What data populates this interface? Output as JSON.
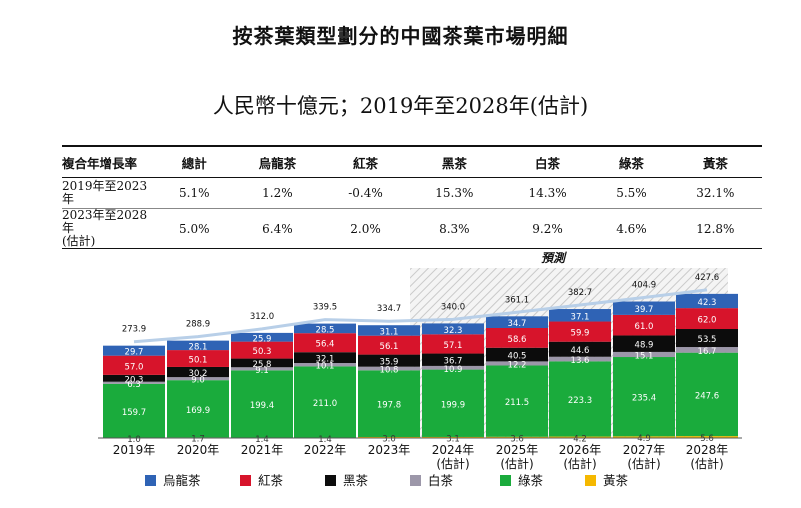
{
  "title": "按茶葉類型劃分的中國茶葉市場明細",
  "subtitle": "人民幣十億元；2019年至2028年(估計)",
  "cagr_table": {
    "headers": [
      "複合年增長率",
      "總計",
      "烏龍茶",
      "紅茶",
      "黑茶",
      "白茶",
      "綠茶",
      "黃茶"
    ],
    "rows": [
      {
        "label": "2019年至2023年",
        "values": [
          "5.1%",
          "1.2%",
          "-0.4%",
          "15.3%",
          "14.3%",
          "5.5%",
          "32.1%"
        ]
      },
      {
        "label": "2023年至2028年\n(估計)",
        "values": [
          "5.0%",
          "6.4%",
          "2.0%",
          "8.3%",
          "9.2%",
          "4.6%",
          "12.8%"
        ]
      }
    ]
  },
  "chart_data": {
    "type": "bar",
    "stacked": true,
    "forecast_label": "預測",
    "categories": [
      "2019年",
      "2020年",
      "2021年",
      "2022年",
      "2023年",
      "2024年\n(估計)",
      "2025年\n(估計)",
      "2026年\n(估計)",
      "2027年\n(估計)",
      "2028年\n(估計)"
    ],
    "totals": [
      273.9,
      288.9,
      312.0,
      339.5,
      334.7,
      340.0,
      361.1,
      382.7,
      404.9,
      427.6
    ],
    "series": [
      {
        "name": "黃茶",
        "color": "#f5b800",
        "values": [
          1.0,
          1.7,
          1.4,
          1.4,
          3.0,
          3.1,
          3.6,
          4.2,
          4.9,
          5.6
        ]
      },
      {
        "name": "綠茶",
        "color": "#1aab3c",
        "values": [
          159.7,
          169.9,
          199.4,
          211.0,
          197.8,
          199.9,
          211.5,
          223.3,
          235.4,
          247.6
        ]
      },
      {
        "name": "白茶",
        "color": "#9c97a9",
        "values": [
          6.3,
          9.0,
          9.1,
          10.1,
          10.8,
          10.9,
          12.2,
          13.6,
          15.1,
          16.7
        ]
      },
      {
        "name": "黑茶",
        "color": "#0c0c0c",
        "values": [
          20.3,
          30.2,
          25.8,
          32.1,
          35.9,
          36.7,
          40.5,
          44.6,
          48.9,
          53.5
        ]
      },
      {
        "name": "紅茶",
        "color": "#d7142b",
        "values": [
          57.0,
          50.1,
          50.3,
          56.4,
          56.1,
          57.1,
          58.6,
          59.9,
          61.0,
          62.0
        ]
      },
      {
        "name": "烏龍茶",
        "color": "#2f63b5",
        "values": [
          29.7,
          28.1,
          25.9,
          28.5,
          31.1,
          32.3,
          34.7,
          37.1,
          39.7,
          42.3
        ]
      }
    ],
    "legend_order": [
      "烏龍茶",
      "紅茶",
      "黑茶",
      "白茶",
      "綠茶",
      "黃茶"
    ],
    "legend_position": "bottom",
    "line_color": "#b8cfe8"
  }
}
